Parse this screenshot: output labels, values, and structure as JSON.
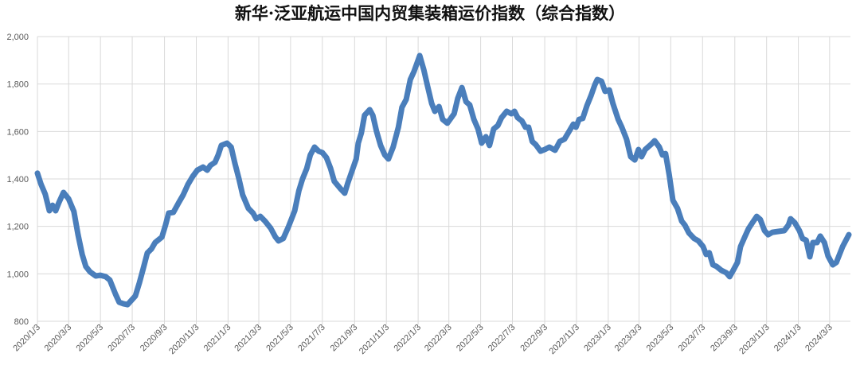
{
  "chart_data": {
    "type": "line",
    "title": "新华·泛亚航运中国内贸集装箱运价指数（综合指数）",
    "xlabel": "",
    "ylabel": "",
    "ylim": [
      800,
      2000
    ],
    "xlim": [
      "2020-01-03",
      "2024-04-12"
    ],
    "y_ticks": [
      "800",
      "1,000",
      "1,200",
      "1,400",
      "1,600",
      "1,800",
      "2,000"
    ],
    "x_ticks": [
      "2020/1/3",
      "2020/3/3",
      "2020/5/3",
      "2020/7/3",
      "2020/9/3",
      "2020/11/3",
      "2021/1/3",
      "2021/3/3",
      "2021/5/3",
      "2021/7/3",
      "2021/9/3",
      "2021/11/3",
      "2022/1/3",
      "2022/3/3",
      "2022/5/3",
      "2022/7/3",
      "2022/9/3",
      "2022/11/3",
      "2023/1/3",
      "2023/3/3",
      "2023/5/3",
      "2023/7/3",
      "2023/9/3",
      "2023/11/3",
      "2024/1/3",
      "2024/3/3"
    ],
    "grid": true,
    "legend": "none",
    "line_color": "#4a7ebb",
    "series": [
      {
        "x": [
          "2020-01-03",
          "2020-01-10",
          "2020-01-18",
          "2020-01-26",
          "2020-02-01",
          "2020-02-07",
          "2020-02-13",
          "2020-02-22",
          "2020-03-03",
          "2020-03-13",
          "2020-03-21",
          "2020-03-29",
          "2020-04-05",
          "2020-04-13",
          "2020-04-24",
          "2020-05-03",
          "2020-05-13",
          "2020-05-21",
          "2020-06-01",
          "2020-06-08",
          "2020-06-16",
          "2020-06-24",
          "2020-07-01",
          "2020-07-09",
          "2020-07-17",
          "2020-07-24",
          "2020-08-01",
          "2020-08-09",
          "2020-08-16",
          "2020-08-29",
          "2020-09-05",
          "2020-09-11",
          "2020-09-20",
          "2020-09-30",
          "2020-10-09",
          "2020-10-18",
          "2020-10-27",
          "2020-11-05",
          "2020-11-16",
          "2020-11-24",
          "2020-11-30",
          "2020-12-09",
          "2020-12-15",
          "2020-12-21",
          "2021-01-01",
          "2021-01-09",
          "2021-01-16",
          "2021-01-24",
          "2021-01-31",
          "2021-02-11",
          "2021-02-20",
          "2021-02-26",
          "2021-03-06",
          "2021-03-15",
          "2021-03-26",
          "2021-04-04",
          "2021-04-10",
          "2021-04-19",
          "2021-04-29",
          "2021-05-11",
          "2021-05-19",
          "2021-05-26",
          "2021-06-03",
          "2021-06-10",
          "2021-06-18",
          "2021-06-26",
          "2021-07-03",
          "2021-07-11",
          "2021-07-19",
          "2021-07-26",
          "2021-08-08",
          "2021-08-15",
          "2021-08-21",
          "2021-08-29",
          "2021-09-06",
          "2021-09-10",
          "2021-09-16",
          "2021-09-22",
          "2021-10-02",
          "2021-10-08",
          "2021-10-15",
          "2021-10-23",
          "2021-10-31",
          "2021-11-07",
          "2021-11-16",
          "2021-11-26",
          "2021-12-03",
          "2021-12-11",
          "2021-12-19",
          "2021-12-26",
          "2022-01-06",
          "2022-01-14",
          "2022-01-21",
          "2022-01-29",
          "2022-02-04",
          "2022-02-12",
          "2022-02-19",
          "2022-02-28",
          "2022-03-13",
          "2022-03-20",
          "2022-03-28",
          "2022-04-05",
          "2022-04-12",
          "2022-04-20",
          "2022-04-28",
          "2022-05-05",
          "2022-05-13",
          "2022-05-20",
          "2022-05-28",
          "2022-06-05",
          "2022-06-12",
          "2022-06-22",
          "2022-07-01",
          "2022-07-07",
          "2022-07-13",
          "2022-07-21",
          "2022-07-28",
          "2022-08-03",
          "2022-08-10",
          "2022-08-17",
          "2022-08-26",
          "2022-09-03",
          "2022-09-12",
          "2022-09-23",
          "2022-10-02",
          "2022-10-11",
          "2022-10-20",
          "2022-10-28",
          "2022-11-02",
          "2022-11-08",
          "2022-11-15",
          "2022-11-23",
          "2022-12-01",
          "2022-12-08",
          "2022-12-13",
          "2022-12-21",
          "2022-12-28",
          "2023-01-05",
          "2023-01-12",
          "2023-01-22",
          "2023-01-29",
          "2023-02-07",
          "2023-02-15",
          "2023-02-23",
          "2023-03-02",
          "2023-03-08",
          "2023-03-15",
          "2023-03-27",
          "2023-04-02",
          "2023-04-11",
          "2023-04-17",
          "2023-04-23",
          "2023-04-30",
          "2023-05-07",
          "2023-05-16",
          "2023-05-24",
          "2023-05-30",
          "2023-06-07",
          "2023-06-17",
          "2023-06-25",
          "2023-07-04",
          "2023-07-10",
          "2023-07-16",
          "2023-07-23",
          "2023-07-30",
          "2023-08-08",
          "2023-08-18",
          "2023-08-24",
          "2023-08-31",
          "2023-09-08",
          "2023-09-14",
          "2023-09-22",
          "2023-09-29",
          "2023-10-07",
          "2023-10-15",
          "2023-10-22",
          "2023-10-30",
          "2023-11-06",
          "2023-11-14",
          "2023-11-27",
          "2023-12-07",
          "2023-12-15",
          "2023-12-19",
          "2023-12-27",
          "2024-01-05",
          "2024-01-11",
          "2024-01-18",
          "2024-01-25",
          "2024-01-31",
          "2024-02-08",
          "2024-02-14",
          "2024-02-22",
          "2024-02-29",
          "2024-03-09",
          "2024-03-16",
          "2024-03-28",
          "2024-04-09"
        ],
        "y": [
          1424,
          1377,
          1336,
          1266,
          1289,
          1266,
          1299,
          1343,
          1316,
          1263,
          1165,
          1082,
          1031,
          1008,
          991,
          994,
          988,
          974,
          914,
          880,
          874,
          870,
          887,
          907,
          964,
          1021,
          1088,
          1105,
          1132,
          1155,
          1206,
          1256,
          1259,
          1299,
          1333,
          1377,
          1410,
          1437,
          1450,
          1437,
          1457,
          1470,
          1501,
          1541,
          1551,
          1534,
          1467,
          1400,
          1333,
          1276,
          1256,
          1232,
          1242,
          1222,
          1192,
          1155,
          1139,
          1149,
          1199,
          1266,
          1350,
          1400,
          1444,
          1501,
          1534,
          1517,
          1511,
          1490,
          1444,
          1390,
          1356,
          1340,
          1383,
          1434,
          1484,
          1551,
          1594,
          1668,
          1692,
          1668,
          1601,
          1541,
          1501,
          1484,
          1534,
          1618,
          1702,
          1735,
          1819,
          1853,
          1920,
          1859,
          1792,
          1718,
          1685,
          1705,
          1651,
          1635,
          1675,
          1739,
          1785,
          1725,
          1712,
          1651,
          1611,
          1551,
          1578,
          1541,
          1611,
          1625,
          1658,
          1685,
          1675,
          1685,
          1658,
          1645,
          1618,
          1618,
          1558,
          1544,
          1517,
          1524,
          1534,
          1521,
          1558,
          1568,
          1601,
          1631,
          1618,
          1651,
          1655,
          1708,
          1752,
          1796,
          1819,
          1812,
          1769,
          1775,
          1718,
          1651,
          1618,
          1568,
          1494,
          1480,
          1524,
          1494,
          1524,
          1547,
          1561,
          1534,
          1501,
          1507,
          1417,
          1310,
          1276,
          1222,
          1206,
          1172,
          1149,
          1139,
          1115,
          1082,
          1089,
          1038,
          1031,
          1015,
          1004,
          988,
          1015,
          1048,
          1115,
          1155,
          1189,
          1216,
          1242,
          1229,
          1182,
          1165,
          1175,
          1179,
          1182,
          1206,
          1232,
          1216,
          1182,
          1149,
          1142,
          1072,
          1132,
          1132,
          1159,
          1132,
          1075,
          1038,
          1048,
          1115,
          1165
        ]
      }
    ]
  }
}
